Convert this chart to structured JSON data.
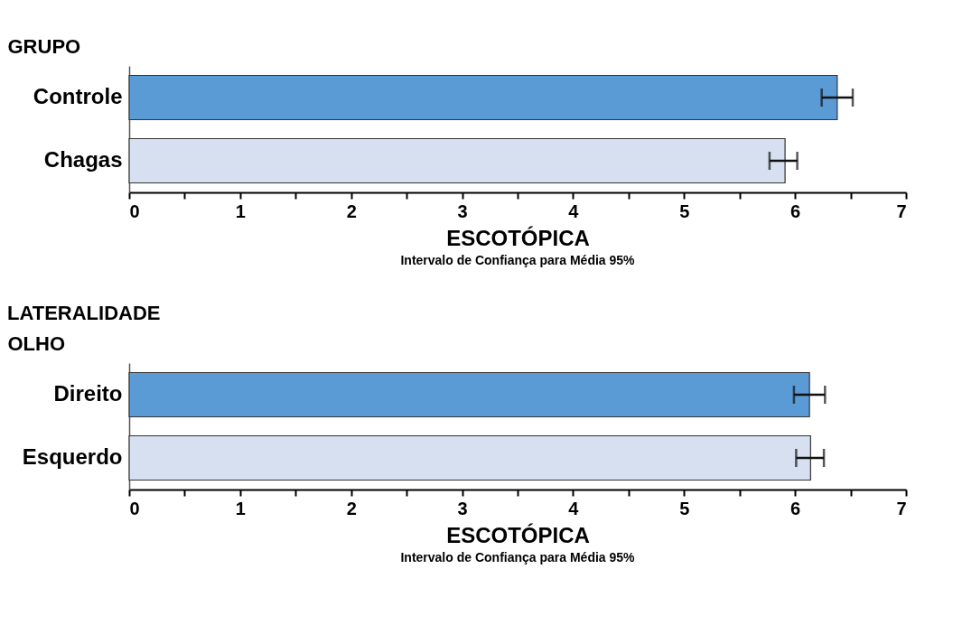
{
  "chart_data": [
    {
      "type": "bar",
      "orientation": "horizontal",
      "ylabel": "GRUPO",
      "xlabel": "ESCOTÓPICA",
      "annotations": [
        "Intervalo de Confiança para Média 95%"
      ],
      "categories": [
        "Controle",
        "Chagas"
      ],
      "values": [
        6.38,
        5.91
      ],
      "colors": [
        "#5b9bd5",
        "#d6e0f0"
      ],
      "errors": [
        [
          6.24,
          6.52
        ],
        [
          5.77,
          6.02
        ]
      ],
      "xlim": [
        0,
        7
      ],
      "xticks": [
        0,
        {
          "value": 0.5,
          "label": null
        },
        1,
        {
          "value": 1.5,
          "label": null
        },
        2,
        {
          "value": 2.5,
          "label": null
        },
        3,
        {
          "value": 3.5,
          "label": null
        },
        4,
        {
          "value": 4.5,
          "label": null
        },
        5,
        {
          "value": 5.5,
          "label": null
        },
        6,
        {
          "value": 6.5,
          "label": null
        },
        7
      ]
    },
    {
      "type": "bar",
      "orientation": "horizontal",
      "title": "LATERALIDADE",
      "ylabel": "OLHO",
      "xlabel": "ESCOTÓPICA",
      "annotations": [
        "Intervalo de Confiança para Média 95%"
      ],
      "categories": [
        "Direito",
        "Esquerdo"
      ],
      "values": [
        6.13,
        6.14
      ],
      "colors": [
        "#5b9bd5",
        "#d6e0f0"
      ],
      "errors": [
        [
          5.99,
          6.27
        ],
        [
          6.01,
          6.26
        ]
      ],
      "xlim": [
        0,
        7
      ],
      "xticks": [
        0,
        {
          "value": 0.5,
          "label": null
        },
        1,
        {
          "value": 1.5,
          "label": null
        },
        2,
        {
          "value": 2.5,
          "label": null
        },
        3,
        {
          "value": 3.5,
          "label": null
        },
        4,
        {
          "value": 4.5,
          "label": null
        },
        5,
        {
          "value": 5.5,
          "label": null
        },
        6,
        {
          "value": 6.5,
          "label": null
        },
        7
      ]
    }
  ]
}
